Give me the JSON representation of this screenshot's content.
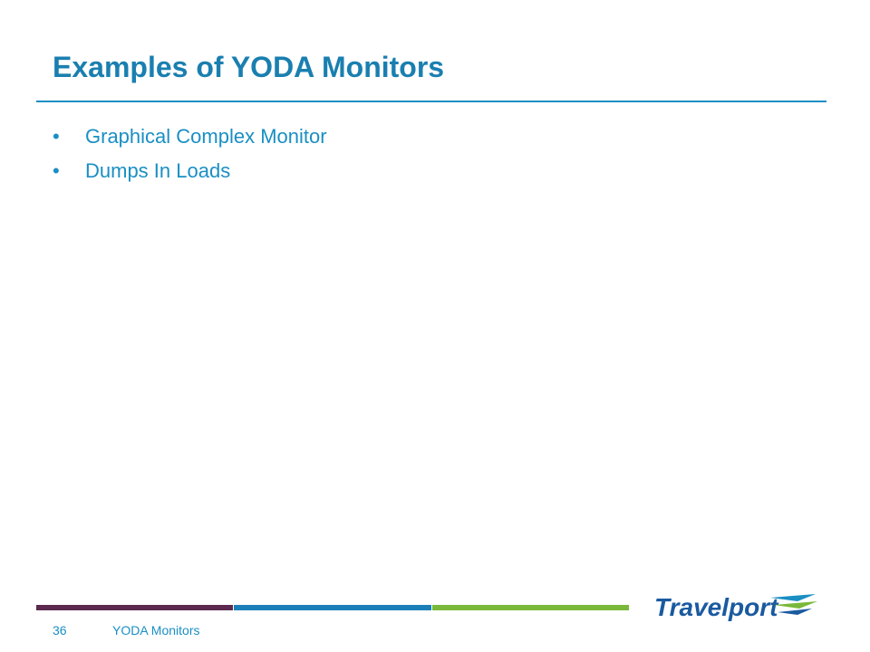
{
  "header": {
    "title": "Examples of YODA Monitors"
  },
  "bullets": [
    "Graphical Complex Monitor",
    "Dumps In Loads"
  ],
  "footer": {
    "page_number": "36",
    "label": "YODA Monitors",
    "logo": "Travelport"
  }
}
